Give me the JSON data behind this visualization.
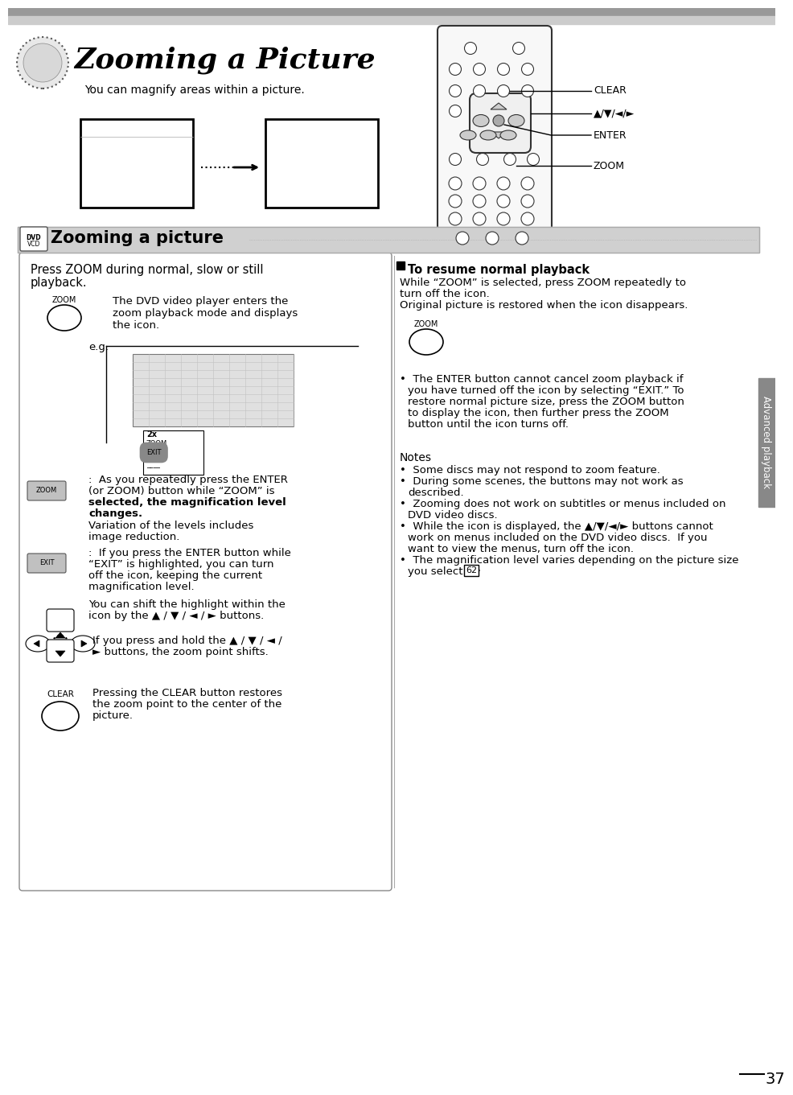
{
  "bg_color": "#ffffff",
  "page_number": "37",
  "title_main": "Zooming a Picture",
  "subtitle_main": "You can magnify areas within a picture.",
  "section_title": "Zooming a picture",
  "header_bar_color": "#c8c8c8",
  "side_bar_color": "#888888",
  "top_stripe_color": "#aaaaaa",
  "top_stripe2_color": "#cccccc"
}
